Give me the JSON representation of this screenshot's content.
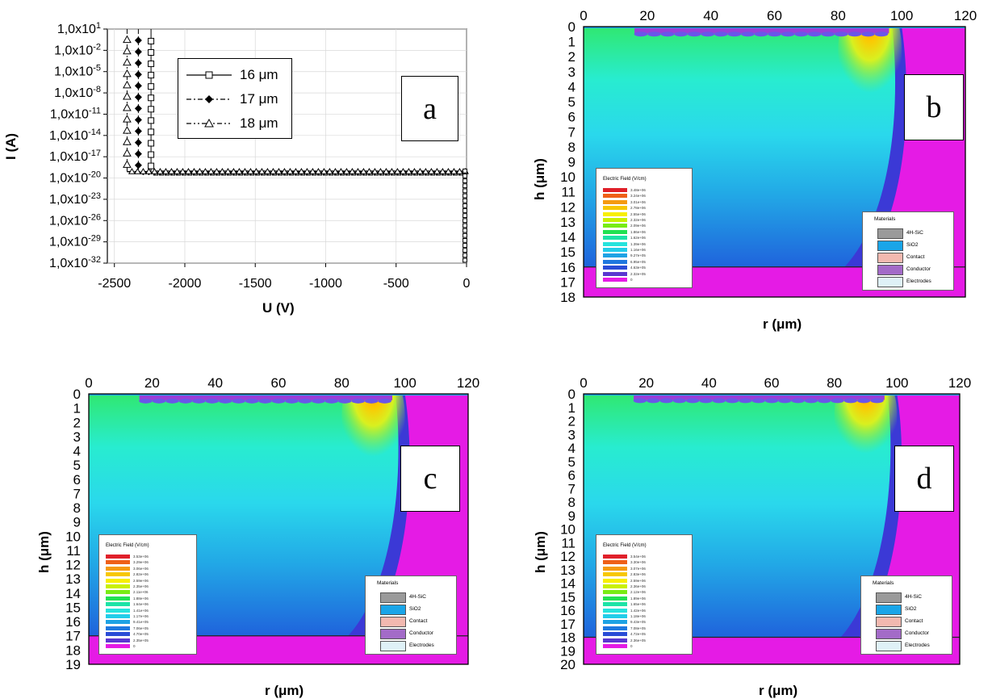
{
  "chart_data": [
    {
      "type": "line",
      "panel_letter": "a",
      "xlabel": "U (V)",
      "ylabel": "I (A)",
      "xlim": [
        -2550,
        0
      ],
      "ylim_exponent": [
        -32,
        1
      ],
      "log_y": true,
      "x_ticks": [
        "-2500",
        "-2000",
        "-1500",
        "-1000",
        "-500",
        "0"
      ],
      "y_ticks": [
        "1,0x10^1",
        "1,0x10^-2",
        "1,0x10^-5",
        "1,0x10^-8",
        "1,0x10^-11",
        "1,0x10^-14",
        "1,0x10^-17",
        "1,0x10^-20",
        "1,0x10^-23",
        "1,0x10^-26",
        "1,0x10^-29",
        "1,0x10^-32"
      ],
      "series": [
        {
          "name": "16 μm",
          "marker": "square",
          "dash": "solid",
          "breakdown_v": -2240,
          "leak_log": -19.3
        },
        {
          "name": "17 μm",
          "marker": "diamond",
          "dash": "dashdot",
          "breakdown_v": -2330,
          "leak_log": -19.2
        },
        {
          "name": "18 μm",
          "marker": "triangle",
          "dash": "dashdotdot",
          "breakdown_v": -2410,
          "leak_log": -19.1
        }
      ]
    },
    {
      "type": "heatmap",
      "panel_letter": "b",
      "xlabel": "r (μm)",
      "ylabel": "h (μm)",
      "x_ticks": [
        "0",
        "20",
        "40",
        "60",
        "80",
        "100",
        "120"
      ],
      "y_ticks": [
        "0",
        "1",
        "2",
        "3",
        "4",
        "5",
        "6",
        "7",
        "8",
        "9",
        "10",
        "11",
        "12",
        "13",
        "14",
        "15",
        "16",
        "17",
        "18"
      ],
      "xlim": [
        0,
        120
      ],
      "ylim": [
        0,
        18
      ],
      "substrate_depth": 16,
      "colorbar_title": "Electric Field (V/cm)",
      "colorbar_values": [
        "3.48e+06",
        "3.24e+06",
        "3.01e+06",
        "2.78e+06",
        "2.55e+06",
        "2.32e+06",
        "2.09e+06",
        "1.86e+06",
        "1.62e+06",
        "1.39e+06",
        "1.16e+06",
        "9.27e+05",
        "6.95e+05",
        "4.63e+05",
        "2.32e+05",
        "0"
      ]
    },
    {
      "type": "heatmap",
      "panel_letter": "c",
      "xlabel": "r (μm)",
      "ylabel": "h (μm)",
      "x_ticks": [
        "0",
        "20",
        "40",
        "60",
        "80",
        "100",
        "120"
      ],
      "y_ticks": [
        "0",
        "1",
        "2",
        "3",
        "4",
        "5",
        "6",
        "7",
        "8",
        "9",
        "10",
        "11",
        "12",
        "13",
        "14",
        "15",
        "16",
        "17",
        "18",
        "19"
      ],
      "xlim": [
        0,
        120
      ],
      "ylim": [
        0,
        19
      ],
      "substrate_depth": 17,
      "colorbar_title": "Electric Field (V/cm)",
      "colorbar_values": [
        "3.53e+06",
        "3.29e+06",
        "3.06e+06",
        "2.82e+06",
        "2.59e+06",
        "2.35e+06",
        "2.11e+06",
        "1.88e+06",
        "1.64e+06",
        "1.41e+06",
        "1.17e+06",
        "9.41e+05",
        "7.06e+05",
        "4.70e+05",
        "2.35e+05",
        "0"
      ]
    },
    {
      "type": "heatmap",
      "panel_letter": "d",
      "xlabel": "r (μm)",
      "ylabel": "h (μm)",
      "x_ticks": [
        "0",
        "20",
        "40",
        "60",
        "80",
        "100",
        "120"
      ],
      "y_ticks": [
        "0",
        "1",
        "2",
        "3",
        "4",
        "5",
        "6",
        "7",
        "8",
        "9",
        "10",
        "11",
        "12",
        "13",
        "14",
        "15",
        "16",
        "17",
        "18",
        "19",
        "20"
      ],
      "xlim": [
        0,
        120
      ],
      "ylim": [
        0,
        20
      ],
      "substrate_depth": 18,
      "colorbar_title": "Electric Field (V/cm)",
      "colorbar_values": [
        "3.54e+06",
        "3.30e+06",
        "3.07e+06",
        "2.83e+06",
        "2.59e+06",
        "2.36e+06",
        "2.12e+06",
        "1.89e+06",
        "1.65e+06",
        "1.42e+06",
        "1.18e+06",
        "9.43e+05",
        "7.08e+05",
        "4.72e+05",
        "2.36e+05",
        "0"
      ]
    }
  ],
  "materials": {
    "title": "Materials",
    "items": [
      {
        "label": "4H-SiC",
        "color": "#9a9a9a"
      },
      {
        "label": "SiO2",
        "color": "#1aa5e8"
      },
      {
        "label": "Contact",
        "color": "#f2b9b0"
      },
      {
        "label": "Conductor",
        "color": "#a36bc8"
      },
      {
        "label": "Electrodes",
        "color": "#dff1f7"
      }
    ]
  },
  "colors": {
    "substrate": "#e51be5",
    "deep": "#3a3ad8",
    "mid": "#2ad8e8",
    "high": "#ffe000"
  }
}
